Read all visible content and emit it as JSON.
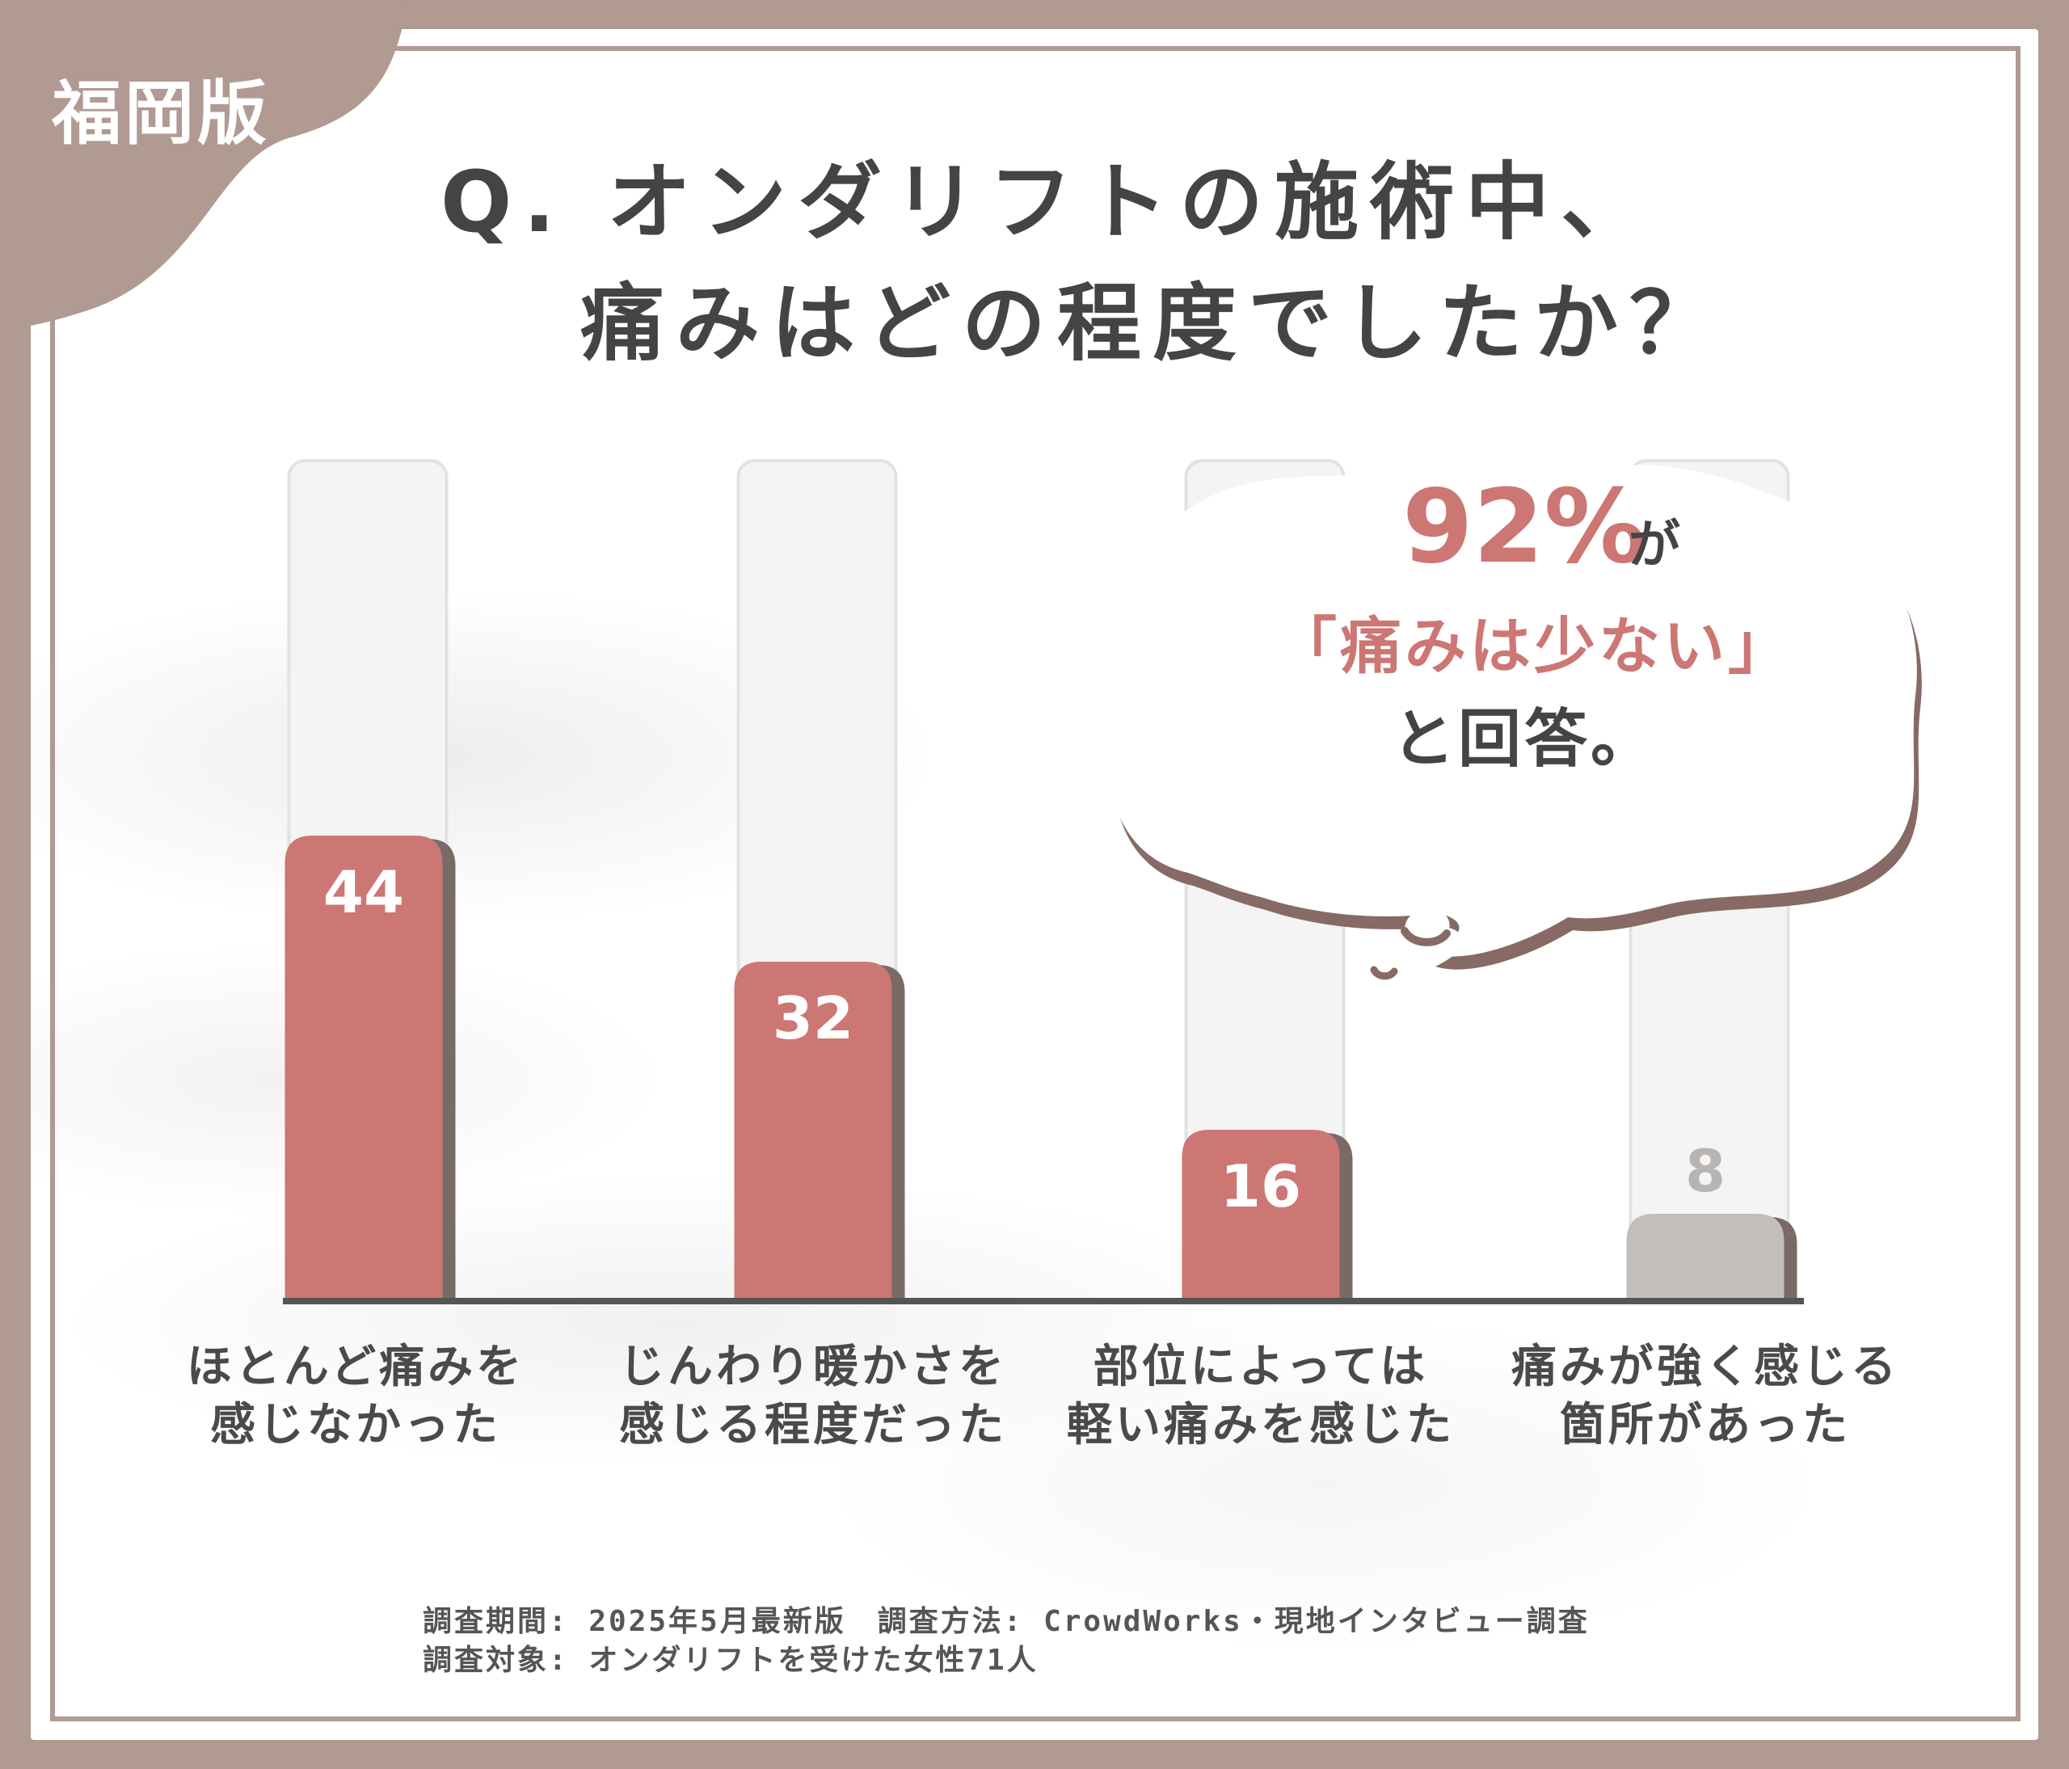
{
  "badge": "福岡版",
  "title": {
    "line1": "Q. オンダリフトの施術中、",
    "line2": "痛みはどの程度でしたか？"
  },
  "colors": {
    "frame": "#b09a92",
    "accent": "#cc7774",
    "muted_bar": "#c2bebc",
    "text": "#444444"
  },
  "callout": {
    "percent": "92%",
    "particle": "が",
    "quote": "「痛みは少ない」",
    "answer": "と回答。"
  },
  "chart_data": {
    "type": "bar",
    "categories": [
      [
        "ほとんど痛みを",
        "感じなかった"
      ],
      [
        "じんわり暖かさを",
        "感じる程度だった"
      ],
      [
        "部位によっては",
        "軽い痛みを感じた"
      ],
      [
        "痛みが強く感じる",
        "箇所があった"
      ]
    ],
    "values": [
      44,
      32,
      16,
      8
    ],
    "value_labels": [
      "44",
      "32",
      "16",
      "8"
    ],
    "bar_colors": [
      "#cc7774",
      "#cc7774",
      "#cc7774",
      "#c2bebc"
    ],
    "ylim": [
      0,
      100
    ],
    "grid": false,
    "legend": "none"
  },
  "footer": {
    "line1": "調査期間: 2025年5月最新版　調査方法: CrowdWorks・現地インタビュー調査",
    "line2": "調査対象: オンダリフトを受けた女性71人"
  }
}
